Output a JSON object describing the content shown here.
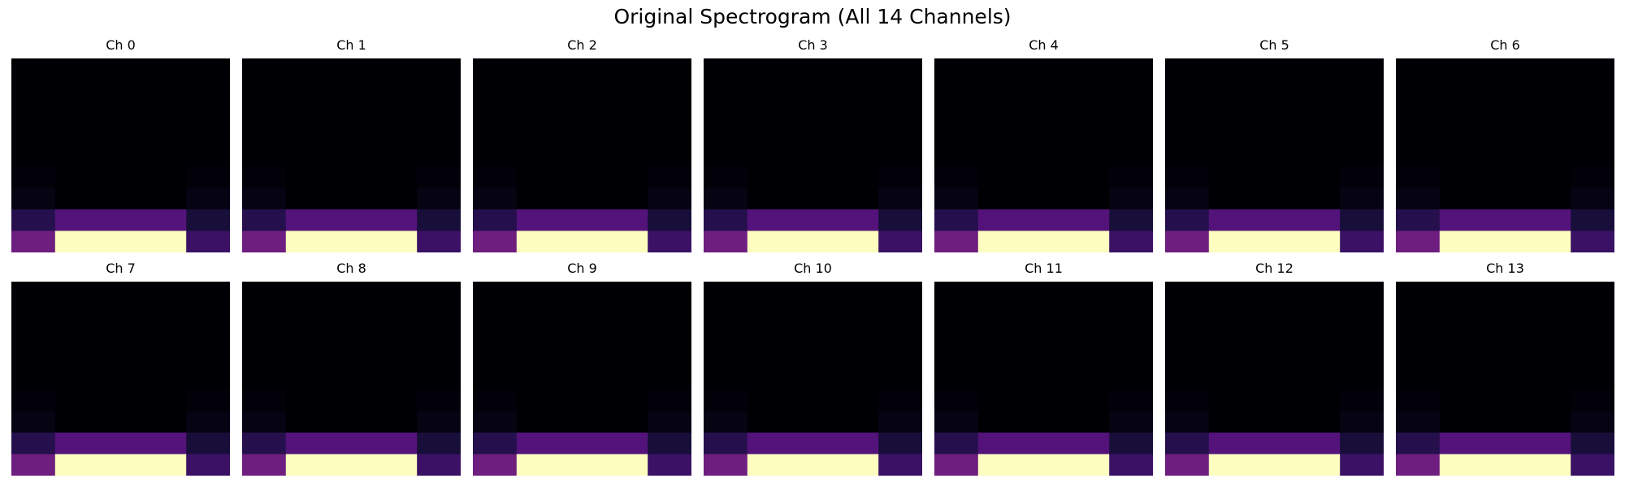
{
  "chart_data": {
    "type": "heatmap",
    "title": "Original Spectrogram (All 14 Channels)",
    "colormap": "magma",
    "value_range": [
      0,
      1
    ],
    "grid": false,
    "axes_visible": false,
    "panels": [
      {
        "title": "Ch 0"
      },
      {
        "title": "Ch 1"
      },
      {
        "title": "Ch 2"
      },
      {
        "title": "Ch 3"
      },
      {
        "title": "Ch 4"
      },
      {
        "title": "Ch 5"
      },
      {
        "title": "Ch 6"
      },
      {
        "title": "Ch 7"
      },
      {
        "title": "Ch 8"
      },
      {
        "title": "Ch 9"
      },
      {
        "title": "Ch 10"
      },
      {
        "title": "Ch 11"
      },
      {
        "title": "Ch 12"
      },
      {
        "title": "Ch 13"
      }
    ],
    "column_groups": [
      {
        "start": 0,
        "count": 1
      },
      {
        "start": 1,
        "count": 3
      },
      {
        "start": 4,
        "count": 1
      }
    ],
    "matrix": [
      [
        0.0,
        0.0,
        0.0,
        0.0,
        0.0
      ],
      [
        0.0,
        0.0,
        0.0,
        0.0,
        0.0
      ],
      [
        0.0,
        0.0,
        0.0,
        0.0,
        0.0
      ],
      [
        0.0,
        0.0,
        0.0,
        0.0,
        0.0
      ],
      [
        0.0,
        0.0,
        0.0,
        0.0,
        0.0
      ],
      [
        0.01,
        0.0,
        0.0,
        0.0,
        0.01
      ],
      [
        0.03,
        0.0,
        0.0,
        0.0,
        0.03
      ],
      [
        0.15,
        0.26,
        0.26,
        0.26,
        0.11
      ],
      [
        0.33,
        1.0,
        1.0,
        1.0,
        0.2
      ]
    ]
  }
}
